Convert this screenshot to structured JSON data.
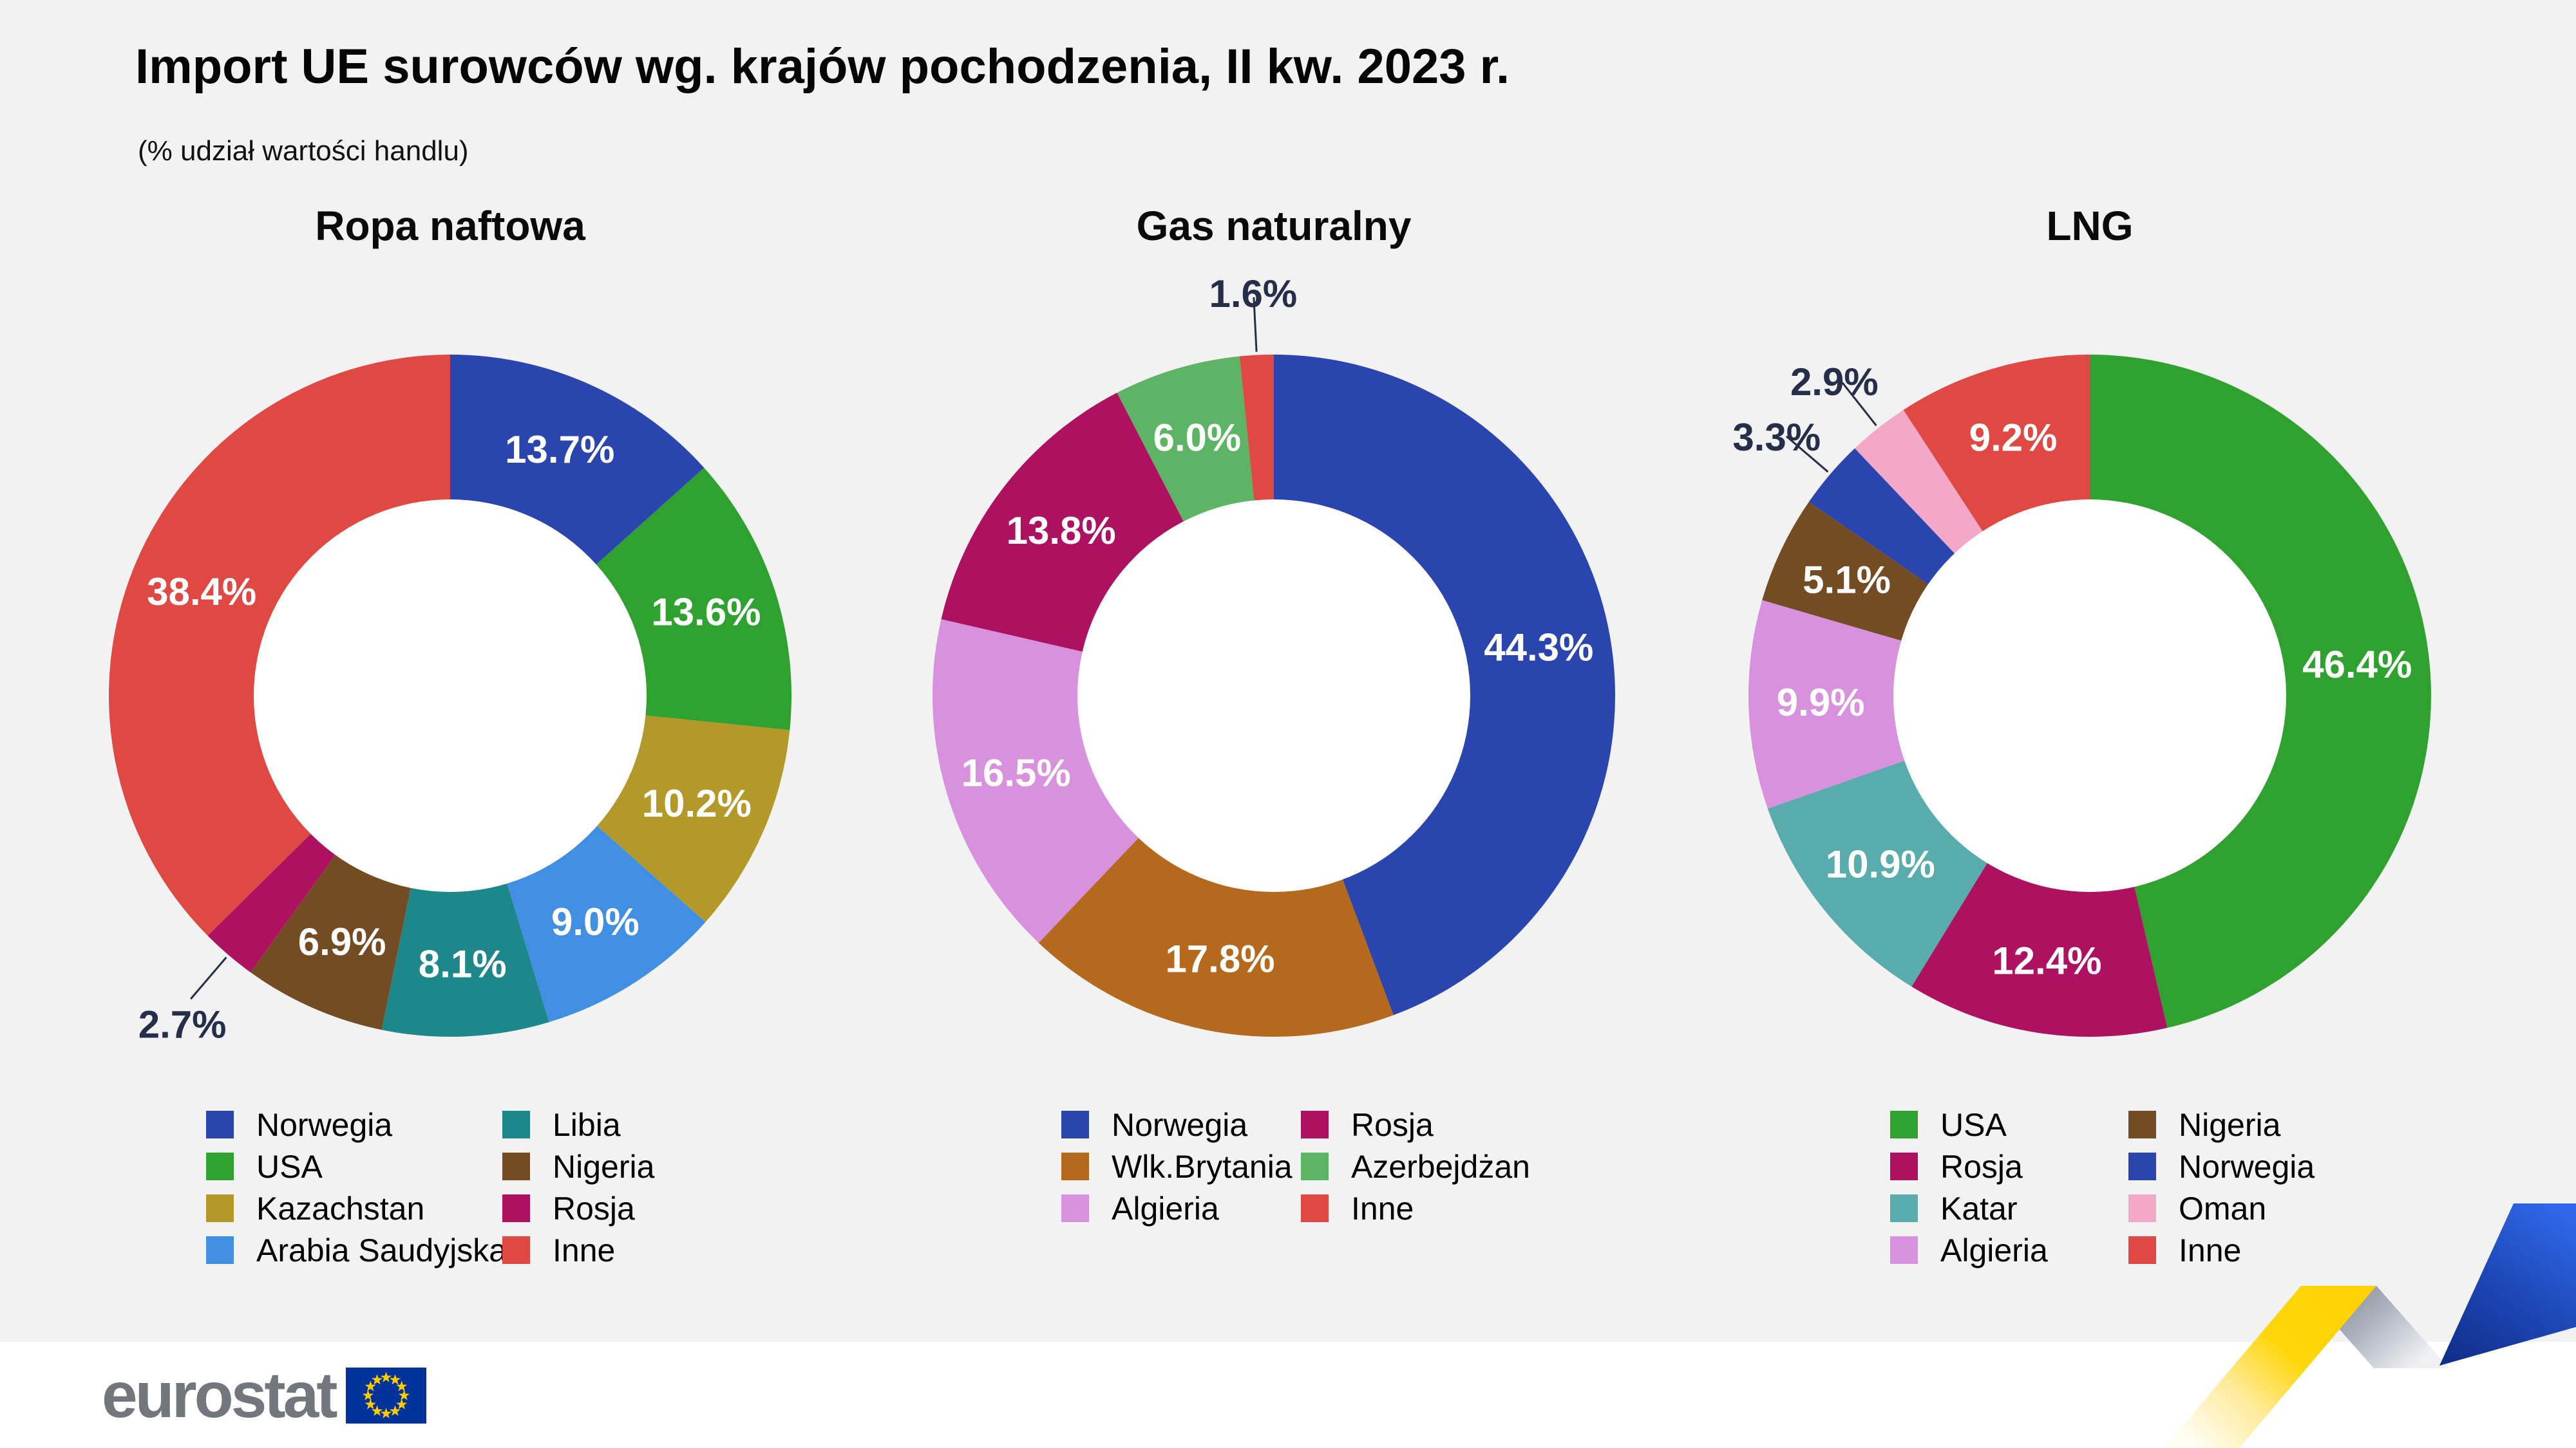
{
  "page": {
    "title": "Import UE surowców wg. krajów pochodzenia, II kw. 2023 r.",
    "subtitle": "(% udział wartości handlu)"
  },
  "chart_data": [
    {
      "type": "donut",
      "title": "Ropa naftowa",
      "slices": [
        {
          "label": "Norwegia",
          "value": 13.7,
          "pct": "13.7%",
          "color": "#2b45ae",
          "outside": false
        },
        {
          "label": "USA",
          "value": 13.6,
          "pct": "13.6%",
          "color": "#2ea12e",
          "outside": false
        },
        {
          "label": "Kazachstan",
          "value": 10.2,
          "pct": "10.2%",
          "color": "#b3982a",
          "outside": false
        },
        {
          "label": "Arabia Saudyjska",
          "value": 9.0,
          "pct": "9.0%",
          "color": "#418fe2",
          "outside": false
        },
        {
          "label": "Libia",
          "value": 8.1,
          "pct": "8.1%",
          "color": "#1d878a",
          "outside": false
        },
        {
          "label": "Nigeria",
          "value": 6.9,
          "pct": "6.9%",
          "color": "#744c24",
          "outside": false
        },
        {
          "label": "Rosja",
          "value": 2.7,
          "pct": "2.7%",
          "color": "#ae1160",
          "outside": true
        },
        {
          "label": "Inne",
          "value": 38.4,
          "pct": "38.4%",
          "color": "#e04843",
          "outside": false
        }
      ],
      "legend_columns": [
        [
          "Norwegia",
          "USA",
          "Kazachstan",
          "Arabia Saudyjska"
        ],
        [
          "Libia",
          "Nigeria",
          "Rosja",
          "Inne"
        ]
      ]
    },
    {
      "type": "donut",
      "title": "Gas naturalny",
      "slices": [
        {
          "label": "Norwegia",
          "value": 44.3,
          "pct": "44.3%",
          "color": "#2b45ae",
          "outside": false
        },
        {
          "label": "Wlk.Brytania",
          "value": 17.8,
          "pct": "17.8%",
          "color": "#b4691c",
          "outside": false
        },
        {
          "label": "Algieria",
          "value": 16.5,
          "pct": "16.5%",
          "color": "#d891dc",
          "outside": false
        },
        {
          "label": "Rosja",
          "value": 13.8,
          "pct": "13.8%",
          "color": "#ae1160",
          "outside": false
        },
        {
          "label": "Azerbejdżan",
          "value": 6.0,
          "pct": "6.0%",
          "color": "#5cb464",
          "outside": false
        },
        {
          "label": "Inne",
          "value": 1.6,
          "pct": "1.6%",
          "color": "#e04843",
          "outside": true
        }
      ],
      "legend_columns": [
        [
          "Norwegia",
          "Wlk.Brytania",
          "Algieria"
        ],
        [
          "Rosja",
          "Azerbejdżan",
          "Inne"
        ]
      ]
    },
    {
      "type": "donut",
      "title": "LNG",
      "slices": [
        {
          "label": "USA",
          "value": 46.4,
          "pct": "46.4%",
          "color": "#2ea12e",
          "outside": false
        },
        {
          "label": "Rosja",
          "value": 12.4,
          "pct": "12.4%",
          "color": "#ae1160",
          "outside": false
        },
        {
          "label": "Katar",
          "value": 10.9,
          "pct": "10.9%",
          "color": "#58acab",
          "outside": false
        },
        {
          "label": "Algieria",
          "value": 9.9,
          "pct": "9.9%",
          "color": "#d891dc",
          "outside": false
        },
        {
          "label": "Nigeria",
          "value": 5.1,
          "pct": "5.1%",
          "color": "#744c24",
          "outside": false
        },
        {
          "label": "Norwegia",
          "value": 3.3,
          "pct": "3.3%",
          "color": "#2b45ae",
          "outside": true
        },
        {
          "label": "Oman",
          "value": 2.9,
          "pct": "2.9%",
          "color": "#f3a8c7",
          "outside": true
        },
        {
          "label": "Inne",
          "value": 9.2,
          "pct": "9.2%",
          "color": "#e04843",
          "outside": false
        }
      ],
      "legend_columns": [
        [
          "USA",
          "Rosja",
          "Katar",
          "Algieria"
        ],
        [
          "Nigeria",
          "Norwegia",
          "Oman",
          "Inne"
        ]
      ]
    }
  ],
  "footer": {
    "brand": "eurostat"
  },
  "decoration": {
    "panel_background": "#f2f2f2",
    "outside_label_color": "#252f49",
    "flag_blue": "#003399",
    "star_yellow": "#ffcc00",
    "ribbon_yellow": "#ffd200",
    "ribbon_gray": "#9aa1ab",
    "ribbon_blue_light": "#2f67e8",
    "ribbon_blue_dark": "#0d2c86"
  }
}
